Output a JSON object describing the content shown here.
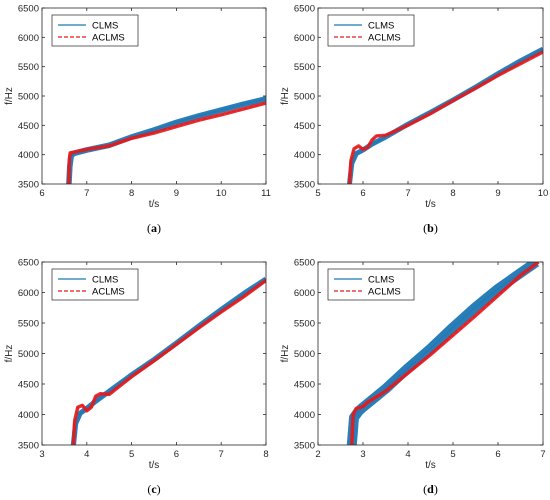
{
  "chart_data": [
    {
      "type": "line",
      "panel": "(a)",
      "caption_letter": "a",
      "xlabel": "t/s",
      "ylabel": "f/Hz",
      "xlim": [
        6,
        11
      ],
      "ylim": [
        3500,
        6500
      ],
      "xticks": [
        6,
        7,
        8,
        9,
        10,
        11
      ],
      "yticks": [
        3500,
        4000,
        4500,
        5000,
        5500,
        6000,
        6500
      ],
      "legend_position": "top-left",
      "series": [
        {
          "name": "CLMS",
          "color": "#1f77b4",
          "style": "solid",
          "band": 35,
          "points": [
            [
              6.6,
              3500
            ],
            [
              6.62,
              3800
            ],
            [
              6.65,
              3970
            ],
            [
              6.7,
              4020
            ],
            [
              7.0,
              4080
            ],
            [
              7.5,
              4160
            ],
            [
              8.0,
              4300
            ],
            [
              8.5,
              4420
            ],
            [
              9.0,
              4550
            ],
            [
              9.5,
              4660
            ],
            [
              10.0,
              4760
            ],
            [
              10.5,
              4860
            ],
            [
              11.0,
              4950
            ]
          ]
        },
        {
          "name": "ACLMS",
          "color": "#e41a1c",
          "style": "dashed",
          "band": 18,
          "points": [
            [
              6.6,
              3500
            ],
            [
              6.61,
              3900
            ],
            [
              6.63,
              4030
            ],
            [
              6.7,
              4040
            ],
            [
              7.0,
              4090
            ],
            [
              7.5,
              4150
            ],
            [
              8.0,
              4280
            ],
            [
              8.5,
              4370
            ],
            [
              9.0,
              4480
            ],
            [
              9.5,
              4590
            ],
            [
              10.0,
              4680
            ],
            [
              10.5,
              4780
            ],
            [
              11.0,
              4880
            ]
          ]
        }
      ]
    },
    {
      "type": "line",
      "panel": "(b)",
      "caption_letter": "b",
      "xlabel": "t/s",
      "ylabel": "f/Hz",
      "xlim": [
        5,
        10
      ],
      "ylim": [
        3500,
        6500
      ],
      "xticks": [
        5,
        6,
        7,
        8,
        9,
        10
      ],
      "yticks": [
        3500,
        4000,
        4500,
        5000,
        5500,
        6000,
        6500
      ],
      "legend_position": "top-left",
      "series": [
        {
          "name": "CLMS",
          "color": "#1f77b4",
          "style": "solid",
          "band": 30,
          "points": [
            [
              5.7,
              3500
            ],
            [
              5.75,
              3850
            ],
            [
              5.85,
              4020
            ],
            [
              6.0,
              4080
            ],
            [
              6.2,
              4180
            ],
            [
              6.5,
              4300
            ],
            [
              7.0,
              4520
            ],
            [
              7.5,
              4720
            ],
            [
              8.0,
              4930
            ],
            [
              8.5,
              5150
            ],
            [
              9.0,
              5380
            ],
            [
              9.5,
              5600
            ],
            [
              10.0,
              5800
            ]
          ]
        },
        {
          "name": "ACLMS",
          "color": "#e41a1c",
          "style": "dashed",
          "band": 16,
          "points": [
            [
              5.7,
              3500
            ],
            [
              5.73,
              3900
            ],
            [
              5.8,
              4100
            ],
            [
              5.9,
              4150
            ],
            [
              6.0,
              4090
            ],
            [
              6.1,
              4120
            ],
            [
              6.2,
              4250
            ],
            [
              6.3,
              4320
            ],
            [
              6.5,
              4330
            ],
            [
              7.0,
              4500
            ],
            [
              7.5,
              4700
            ],
            [
              8.0,
              4920
            ],
            [
              8.5,
              5130
            ],
            [
              9.0,
              5350
            ],
            [
              9.5,
              5550
            ],
            [
              10.0,
              5750
            ]
          ]
        }
      ]
    },
    {
      "type": "line",
      "panel": "(c)",
      "caption_letter": "c",
      "xlabel": "t/s",
      "ylabel": "f/Hz",
      "xlim": [
        3,
        8
      ],
      "ylim": [
        3500,
        6500
      ],
      "xticks": [
        3,
        4,
        5,
        6,
        7,
        8
      ],
      "yticks": [
        3500,
        4000,
        4500,
        5000,
        5500,
        6000,
        6500
      ],
      "legend_position": "top-left",
      "series": [
        {
          "name": "CLMS",
          "color": "#1f77b4",
          "style": "solid",
          "band": 30,
          "points": [
            [
              3.7,
              3500
            ],
            [
              3.75,
              3850
            ],
            [
              3.85,
              4020
            ],
            [
              4.0,
              4100
            ],
            [
              4.2,
              4220
            ],
            [
              4.5,
              4380
            ],
            [
              5.0,
              4650
            ],
            [
              5.5,
              4900
            ],
            [
              6.0,
              5170
            ],
            [
              6.5,
              5450
            ],
            [
              7.0,
              5720
            ],
            [
              7.5,
              5980
            ],
            [
              8.0,
              6220
            ]
          ]
        },
        {
          "name": "ACLMS",
          "color": "#e41a1c",
          "style": "dashed",
          "band": 16,
          "points": [
            [
              3.7,
              3500
            ],
            [
              3.73,
              3900
            ],
            [
              3.8,
              4120
            ],
            [
              3.9,
              4150
            ],
            [
              4.0,
              4060
            ],
            [
              4.1,
              4120
            ],
            [
              4.2,
              4300
            ],
            [
              4.3,
              4340
            ],
            [
              4.5,
              4330
            ],
            [
              5.0,
              4620
            ],
            [
              5.5,
              4880
            ],
            [
              6.0,
              5150
            ],
            [
              6.5,
              5420
            ],
            [
              7.0,
              5680
            ],
            [
              7.5,
              5930
            ],
            [
              8.0,
              6200
            ]
          ]
        }
      ]
    },
    {
      "type": "line",
      "panel": "(d)",
      "caption_letter": "d",
      "xlabel": "t/s",
      "ylabel": "f/Hz",
      "xlim": [
        2,
        7
      ],
      "ylim": [
        3500,
        6500
      ],
      "xticks": [
        2,
        3,
        4,
        5,
        6,
        7
      ],
      "yticks": [
        3500,
        4000,
        4500,
        5000,
        5500,
        6000,
        6500
      ],
      "legend_position": "top-left",
      "series": [
        {
          "name": "CLMS",
          "color": "#1f77b4",
          "style": "solid",
          "band": 70,
          "points": [
            [
              2.75,
              3500
            ],
            [
              2.8,
              3950
            ],
            [
              2.9,
              4050
            ],
            [
              3.0,
              4120
            ],
            [
              3.5,
              4420
            ],
            [
              4.0,
              4760
            ],
            [
              4.5,
              5080
            ],
            [
              5.0,
              5430
            ],
            [
              5.5,
              5760
            ],
            [
              6.0,
              6060
            ],
            [
              6.5,
              6320
            ],
            [
              6.85,
              6500
            ]
          ]
        },
        {
          "name": "ACLMS",
          "color": "#e41a1c",
          "style": "dashed",
          "band": 16,
          "points": [
            [
              2.75,
              3500
            ],
            [
              2.78,
              4000
            ],
            [
              2.85,
              4100
            ],
            [
              3.0,
              4130
            ],
            [
              3.1,
              4200
            ],
            [
              3.5,
              4380
            ],
            [
              4.0,
              4680
            ],
            [
              4.5,
              4980
            ],
            [
              5.0,
              5300
            ],
            [
              5.5,
              5620
            ],
            [
              6.0,
              5950
            ],
            [
              6.5,
              6280
            ],
            [
              6.9,
              6500
            ]
          ]
        }
      ]
    }
  ]
}
